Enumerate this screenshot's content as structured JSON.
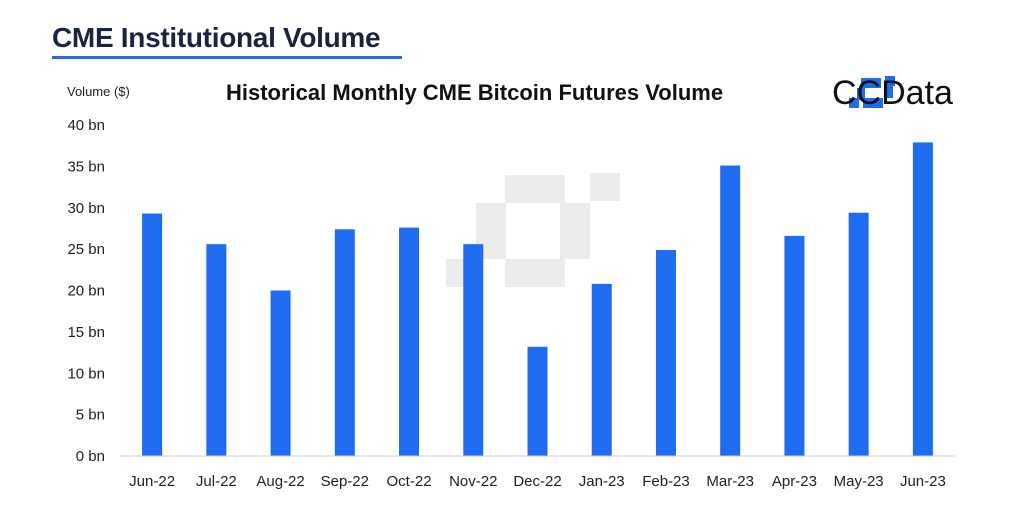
{
  "header": {
    "title": "CME Institutional Volume",
    "accent_color": "#1e6cf0"
  },
  "brand": {
    "name": "CCData",
    "logo_icon": "ccdata-logo-icon",
    "color": "#1e6cf0"
  },
  "chart_data": {
    "type": "bar",
    "title": "Historical Monthly CME Bitcoin Futures Volume",
    "ylabel": "Volume ($)",
    "xlabel": "",
    "categories": [
      "Jun-22",
      "Jul-22",
      "Aug-22",
      "Sep-22",
      "Oct-22",
      "Nov-22",
      "Dec-22",
      "Jan-23",
      "Feb-23",
      "Mar-23",
      "Apr-23",
      "May-23",
      "Jun-23"
    ],
    "values": [
      29.3,
      25.6,
      20.0,
      27.4,
      27.6,
      25.6,
      13.2,
      20.8,
      24.9,
      35.1,
      26.6,
      29.4,
      37.9
    ],
    "units": "bn",
    "ylim": [
      0,
      40
    ],
    "yticks": [
      0,
      5,
      10,
      15,
      20,
      25,
      30,
      35,
      40
    ],
    "ytick_labels": [
      "0 bn",
      "5 bn",
      "10 bn",
      "15 bn",
      "20 bn",
      "25 bn",
      "30 bn",
      "35 bn",
      "40 bn"
    ],
    "grid": false,
    "legend": "none",
    "bar_color": "#1e6cf0"
  }
}
